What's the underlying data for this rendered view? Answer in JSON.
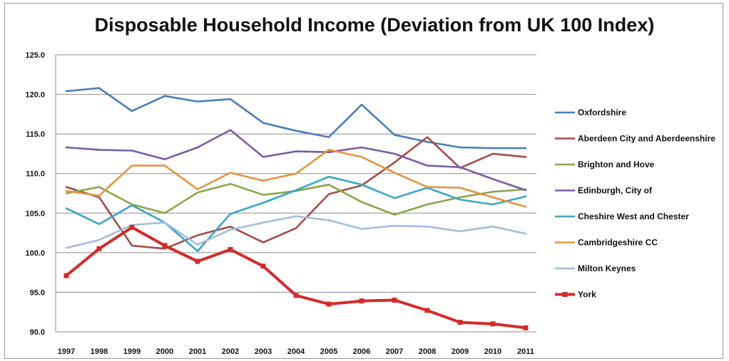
{
  "chart_data": {
    "type": "line",
    "title": "Disposable Household Income (Deviation from UK 100 Index)",
    "xlabel": "",
    "ylabel": "",
    "ylim": [
      90,
      125
    ],
    "grid": true,
    "legend_position": "right",
    "y_ticks": [
      "125.0",
      "120.0",
      "115.0",
      "110.0",
      "105.0",
      "100.0",
      "95.0",
      "90.0"
    ],
    "x": [
      "1997",
      "1998",
      "1999",
      "2000",
      "2001",
      "2002",
      "2003",
      "2004",
      "2005",
      "2006",
      "2007",
      "2008",
      "2009",
      "2010",
      "2011"
    ],
    "series": [
      {
        "name": "Oxfordshire",
        "color": "#4a7ebb",
        "values": [
          120.4,
          120.8,
          117.9,
          119.8,
          119.1,
          119.4,
          116.4,
          115.4,
          114.6,
          118.7,
          114.9,
          114.0,
          113.3,
          113.2,
          113.2
        ]
      },
      {
        "name": "Aberdeen City and Aberdeenshire",
        "color": "#a54c4a",
        "values": [
          108.3,
          107.0,
          100.9,
          100.5,
          102.2,
          103.3,
          101.3,
          103.1,
          107.4,
          108.5,
          111.4,
          114.6,
          110.7,
          112.5,
          112.1
        ]
      },
      {
        "name": "Brighton and Hove",
        "color": "#8aa64a",
        "values": [
          107.5,
          108.3,
          106.1,
          105.0,
          107.6,
          108.7,
          107.3,
          107.8,
          108.6,
          106.4,
          104.8,
          106.1,
          107.0,
          107.7,
          108.0
        ]
      },
      {
        "name": "Edinburgh, City of",
        "color": "#7b5ba3",
        "values": [
          113.3,
          113.0,
          112.9,
          111.8,
          113.3,
          115.5,
          112.1,
          112.8,
          112.7,
          113.3,
          112.5,
          111.0,
          110.8,
          109.3,
          107.9
        ]
      },
      {
        "name": "Cheshire West and Chester",
        "color": "#3ca5c4",
        "values": [
          105.6,
          103.6,
          106.0,
          103.8,
          100.2,
          104.9,
          106.3,
          107.9,
          109.6,
          108.6,
          106.9,
          108.2,
          106.7,
          106.1,
          107.1
        ]
      },
      {
        "name": "Cambridgeshire CC",
        "color": "#e59440",
        "values": [
          107.8,
          107.2,
          111.0,
          111.0,
          108.0,
          110.1,
          109.1,
          110.0,
          113.0,
          112.1,
          110.1,
          108.3,
          108.2,
          107.0,
          105.8
        ]
      },
      {
        "name": "Milton Keynes",
        "color": "#a3bde0",
        "values": [
          100.6,
          101.6,
          103.5,
          103.8,
          101.0,
          102.9,
          103.8,
          104.6,
          104.1,
          103.0,
          103.4,
          103.3,
          102.7,
          103.3,
          102.4
        ]
      },
      {
        "name": "York",
        "color": "#d42a2a",
        "values": [
          97.1,
          100.5,
          103.2,
          100.9,
          98.9,
          100.4,
          98.3,
          94.6,
          93.5,
          93.9,
          94.0,
          92.7,
          91.2,
          91.0,
          90.5
        ]
      }
    ]
  }
}
